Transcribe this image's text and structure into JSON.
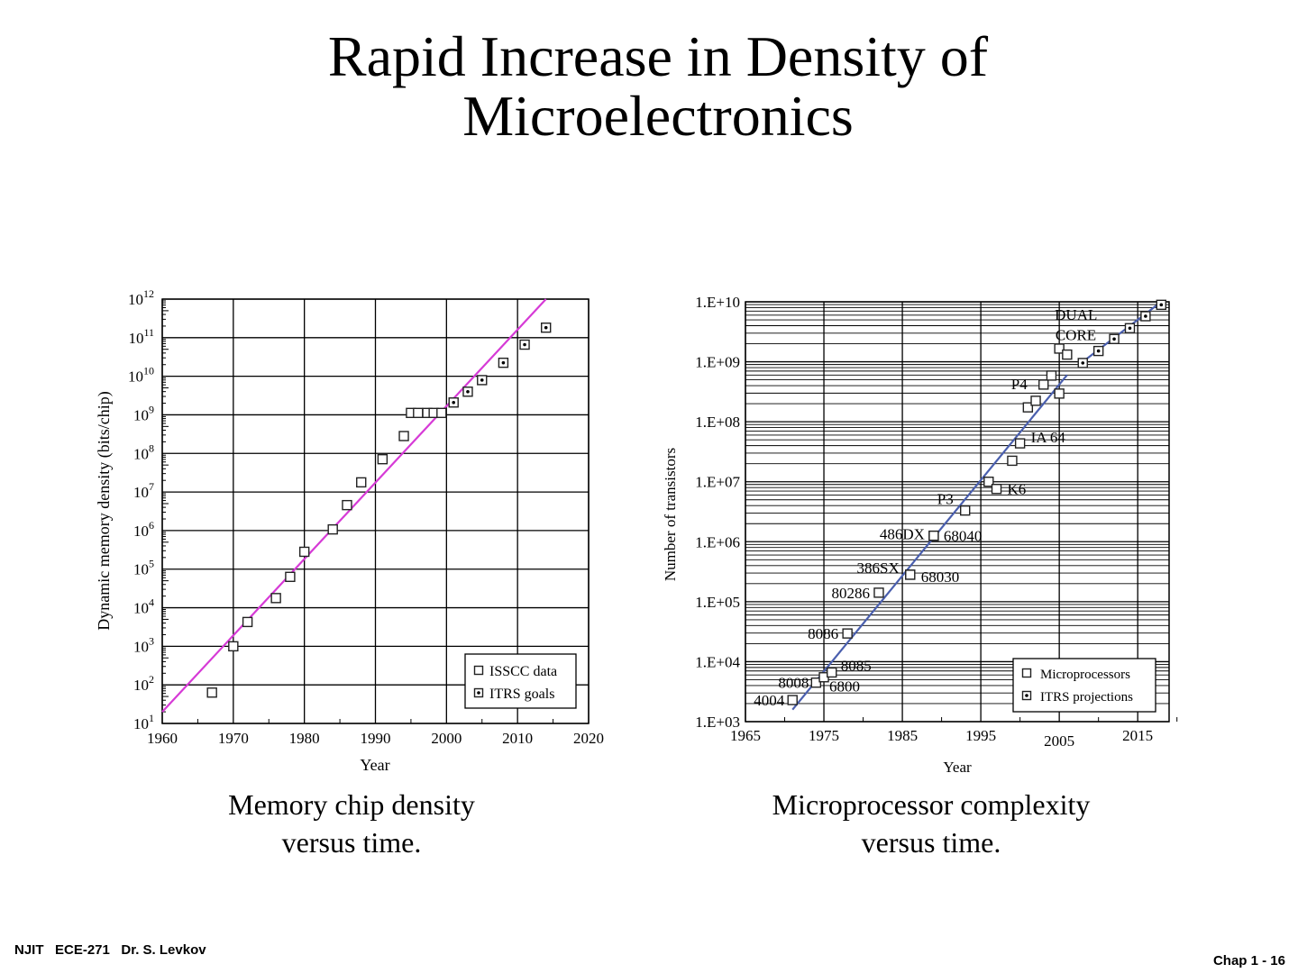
{
  "title_line1": "Rapid Increase in Density of",
  "title_line2": "Microelectronics",
  "caption_left": [
    "Memory chip density",
    "versus time."
  ],
  "caption_right": [
    "Microprocessor complexity",
    "versus time."
  ],
  "footer_left": "NJIT   ECE-271   Dr. S. Levkov",
  "footer_right": "Chap 1 - 16",
  "chart_data": [
    {
      "type": "scatter",
      "title": "",
      "xlabel": "Year",
      "ylabel": "Dynamic memory density (bits/chip)",
      "xlim": [
        1960,
        2020
      ],
      "ylim_log10": [
        1,
        12
      ],
      "xticks": [
        "1960",
        "1970",
        "1980",
        "1990",
        "2000",
        "2010",
        "2020"
      ],
      "yticks_exponents": [
        "1",
        "2",
        "3",
        "4",
        "5",
        "6",
        "7",
        "8",
        "9",
        "10",
        "11",
        "12"
      ],
      "grid": true,
      "legend_position": "bottom-right",
      "line_color": "#d63ad6",
      "trend_line": {
        "x": [
          1960,
          2014
        ],
        "log10_y": [
          1.3,
          12
        ]
      },
      "series": [
        {
          "name": "ISSCC data",
          "marker": "open-square",
          "x": [
            1967,
            1970,
            1972,
            1976,
            1978,
            1980,
            1984,
            1986,
            1988,
            1991,
            1994,
            1995,
            1996,
            1997.3,
            1998.2,
            1999.3
          ],
          "log10_y": [
            1.8,
            3.0,
            3.63,
            4.25,
            4.8,
            5.45,
            6.03,
            6.66,
            7.25,
            7.85,
            8.45,
            9.05,
            9.05,
            9.05,
            9.05,
            9.05
          ]
        },
        {
          "name": "ITRS goals",
          "marker": "dotted-square",
          "x": [
            2001,
            2003,
            2005,
            2008,
            2011,
            2014
          ],
          "log10_y": [
            9.32,
            9.6,
            9.9,
            10.35,
            10.82,
            11.26
          ]
        }
      ]
    },
    {
      "type": "scatter",
      "title": "",
      "xlabel": "Year",
      "ylabel": "Number of transistors",
      "xlim": [
        1965,
        2019
      ],
      "ylim_log10": [
        3,
        10
      ],
      "xticks": [
        "1965",
        "1975",
        "1985",
        "1995",
        "2005",
        "2015"
      ],
      "yticks": [
        "1.E+03",
        "1.E+04",
        "1.E+05",
        "1.E+06",
        "1.E+07",
        "1.E+08",
        "1.E+09",
        "1.E+10"
      ],
      "grid": true,
      "legend_position": "bottom-right",
      "line_color": "#4a5fae",
      "trend_lines": [
        {
          "x": [
            1971,
            2006
          ],
          "log10_y": [
            3.2,
            8.78
          ]
        },
        {
          "x": [
            2007.5,
            2018
          ],
          "log10_y": [
            8.95,
            10
          ]
        }
      ],
      "series": [
        {
          "name": "Microprocessors",
          "marker": "open-square",
          "points": [
            {
              "x": 1971,
              "log10_y": 3.36,
              "label": "4004"
            },
            {
              "x": 1974,
              "log10_y": 3.65,
              "label": "8008"
            },
            {
              "x": 1975,
              "log10_y": 3.74,
              "label": "6800"
            },
            {
              "x": 1976,
              "log10_y": 3.82,
              "label": "8085"
            },
            {
              "x": 1978,
              "log10_y": 4.47,
              "label": "8086"
            },
            {
              "x": 1982,
              "log10_y": 5.15,
              "label": "80286"
            },
            {
              "x": 1986,
              "log10_y": 5.45,
              "label": "386SX"
            },
            {
              "x": 1986,
              "log10_y": 5.45,
              "label": "68030"
            },
            {
              "x": 1989,
              "log10_y": 6.1,
              "label": "486DX"
            },
            {
              "x": 1989,
              "log10_y": 6.1,
              "label": "68040"
            },
            {
              "x": 1993,
              "log10_y": 6.52,
              "label": "P3"
            },
            {
              "x": 1996,
              "log10_y": 7.0,
              "label": ""
            },
            {
              "x": 1997,
              "log10_y": 6.88,
              "label": "K6"
            },
            {
              "x": 1999,
              "log10_y": 7.35,
              "label": ""
            },
            {
              "x": 2000,
              "log10_y": 7.64,
              "label": "IA 64"
            },
            {
              "x": 2001,
              "log10_y": 8.24,
              "label": ""
            },
            {
              "x": 2002,
              "log10_y": 8.35,
              "label": ""
            },
            {
              "x": 2003,
              "log10_y": 8.62,
              "label": "P4"
            },
            {
              "x": 2004,
              "log10_y": 8.77,
              "label": ""
            },
            {
              "x": 2005,
              "log10_y": 8.47,
              "label": ""
            },
            {
              "x": 2005,
              "log10_y": 9.22,
              "label": "DUAL"
            },
            {
              "x": 2006,
              "log10_y": 9.12,
              "label": "CORE"
            }
          ]
        },
        {
          "name": "ITRS projections",
          "marker": "dotted-square",
          "points": [
            {
              "x": 2008,
              "log10_y": 8.98
            },
            {
              "x": 2010,
              "log10_y": 9.18
            },
            {
              "x": 2012,
              "log10_y": 9.38
            },
            {
              "x": 2014,
              "log10_y": 9.56
            },
            {
              "x": 2016,
              "log10_y": 9.76
            },
            {
              "x": 2018,
              "log10_y": 9.95
            }
          ]
        }
      ]
    }
  ]
}
